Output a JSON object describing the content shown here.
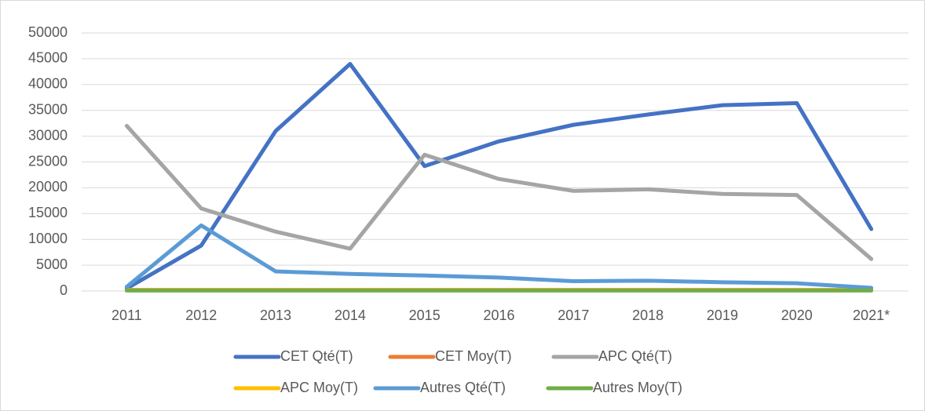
{
  "chart_data": {
    "type": "line",
    "categories": [
      "2011",
      "2012",
      "2013",
      "2014",
      "2015",
      "2016",
      "2017",
      "2018",
      "2019",
      "2020",
      "2021*"
    ],
    "series": [
      {
        "name": "CET Qté(T)",
        "color": "#4472c4",
        "values": [
          500,
          8800,
          31000,
          44000,
          24200,
          29000,
          32200,
          34200,
          36000,
          36400,
          12000
        ]
      },
      {
        "name": "CET Moy(T)",
        "color": "#ed7d31",
        "values": [
          200,
          200,
          200,
          200,
          200,
          200,
          200,
          200,
          200,
          200,
          200
        ]
      },
      {
        "name": "APC Qté(T)",
        "color": "#a5a5a5",
        "values": [
          32000,
          16000,
          11500,
          8200,
          26400,
          21700,
          19400,
          19700,
          18800,
          18600,
          6200
        ]
      },
      {
        "name": "APC Moy(T)",
        "color": "#ffc000",
        "values": [
          150,
          150,
          150,
          150,
          150,
          150,
          150,
          150,
          150,
          150,
          150
        ]
      },
      {
        "name": "Autres Qté(T)",
        "color": "#5b9bd5",
        "values": [
          800,
          12700,
          3800,
          3300,
          3000,
          2600,
          1900,
          2000,
          1700,
          1500,
          600
        ]
      },
      {
        "name": "Autres Moy(T)",
        "color": "#70ad47",
        "values": [
          100,
          100,
          100,
          100,
          100,
          100,
          100,
          100,
          100,
          100,
          100
        ]
      }
    ],
    "ylim": [
      0,
      50000
    ],
    "yticks": [
      0,
      5000,
      10000,
      15000,
      20000,
      25000,
      30000,
      35000,
      40000,
      45000,
      50000
    ],
    "grid": true,
    "legend": "bottom"
  }
}
